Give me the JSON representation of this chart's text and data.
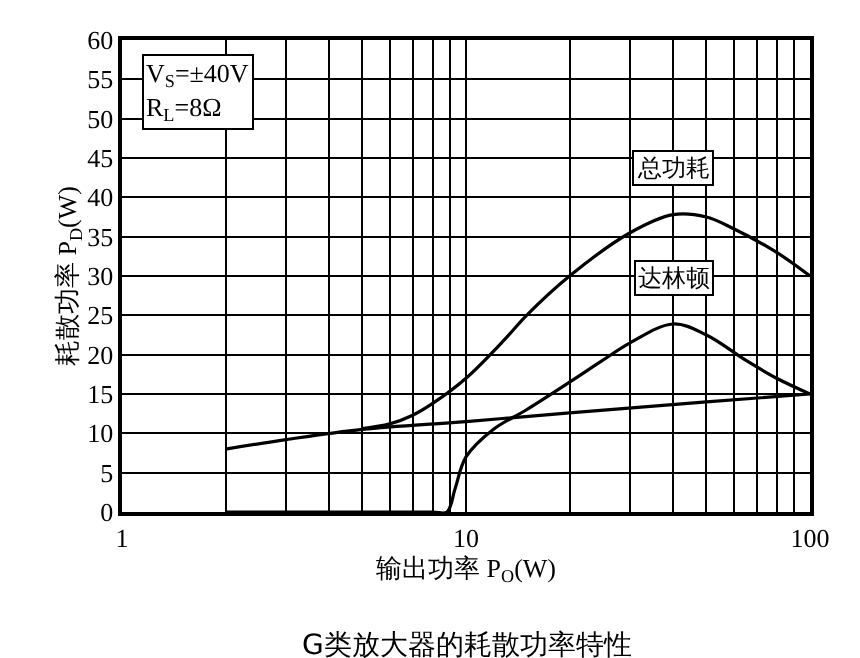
{
  "chart_data": {
    "type": "line",
    "title": "G类放大器的耗散功率特性",
    "xlabel": "输出功率 P$_{O}$(W)",
    "ylabel": "耗散功率 P$_{D}$(W)",
    "annotations": [
      "V$_{S}$=±40V\nR$_{L}$=8Ω"
    ],
    "log": "x",
    "xlim": [
      1,
      100
    ],
    "ylim": [
      0,
      60
    ],
    "xticks": [
      1,
      {
        "value": 2,
        "label": null
      },
      {
        "value": 3,
        "label": null
      },
      {
        "value": 4,
        "label": null
      },
      {
        "value": 5,
        "label": null
      },
      {
        "value": 6,
        "label": null
      },
      {
        "value": 7,
        "label": null
      },
      {
        "value": 8,
        "label": null
      },
      {
        "value": 9,
        "label": null
      },
      10,
      {
        "value": 20,
        "label": null
      },
      {
        "value": 30,
        "label": null
      },
      {
        "value": 40,
        "label": null
      },
      {
        "value": 50,
        "label": null
      },
      {
        "value": 60,
        "label": null
      },
      {
        "value": 70,
        "label": null
      },
      {
        "value": 80,
        "label": null
      },
      {
        "value": 90,
        "label": null
      },
      100
    ],
    "yticks": [
      0,
      5,
      10,
      15,
      20,
      25,
      30,
      35,
      40,
      45,
      50,
      55,
      60
    ],
    "grid": true,
    "legend": false,
    "marker": "none",
    "line_style": "solid",
    "series": [
      {
        "name": "总功耗",
        "color": "#000000",
        "x": [
          5,
          6,
          7,
          8,
          10,
          13,
          15,
          20,
          30,
          40,
          50,
          60,
          80,
          100
        ],
        "values": [
          10.6,
          11.2,
          12.3,
          13.8,
          17,
          22,
          25,
          30,
          35.5,
          37.8,
          37.5,
          36,
          33,
          30
        ]
      },
      {
        "name": "达林顿",
        "color": "#000000",
        "x": [
          2,
          5,
          8,
          8.8,
          9.3,
          10,
          12,
          15,
          20,
          25,
          30,
          40,
          50,
          65,
          80,
          100
        ],
        "values": [
          0,
          0,
          0,
          0,
          3,
          7,
          10.5,
          13,
          16.5,
          19.3,
          21.5,
          23.9,
          22.5,
          19.3,
          17,
          15
        ]
      },
      {
        "color": "#000000",
        "x": [
          2,
          3,
          5,
          10,
          20,
          50,
          100
        ],
        "values": [
          8,
          9.2,
          10.5,
          11.5,
          12.6,
          14,
          15
        ]
      }
    ]
  }
}
